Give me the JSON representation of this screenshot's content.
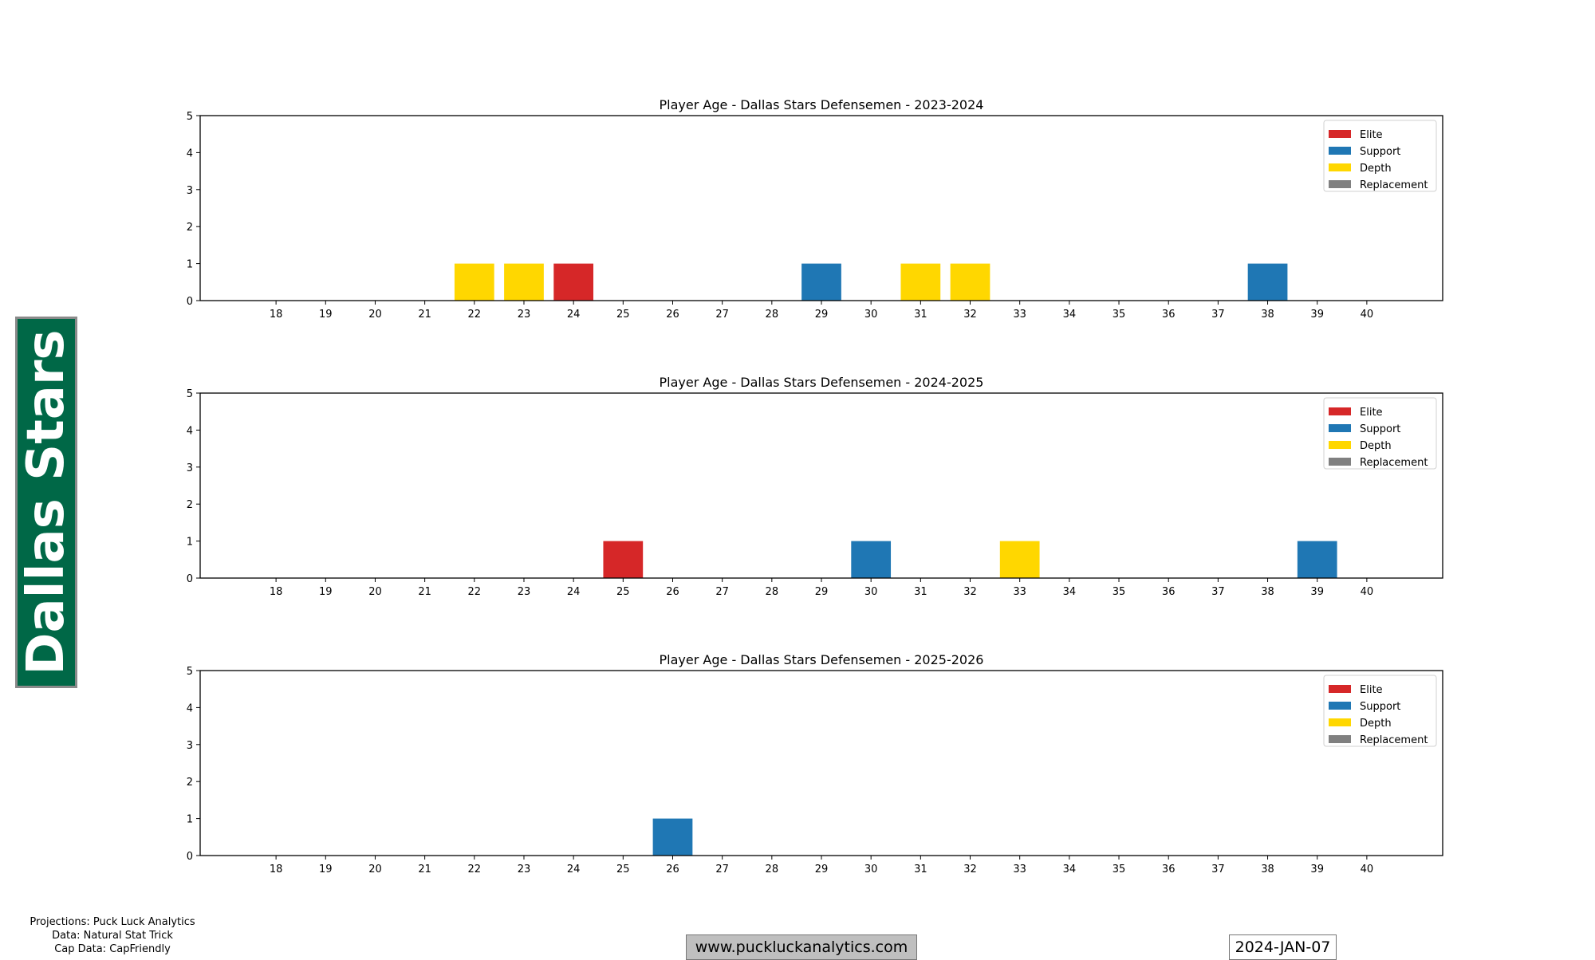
{
  "team_label": "Dallas Stars",
  "credits": [
    "Projections: Puck Luck Analytics",
    "Data: Natural Stat Trick",
    "Cap Data: CapFriendly"
  ],
  "website": "www.puckluckanalytics.com",
  "date": "2024-JAN-07",
  "colors": {
    "Elite": "#d62728",
    "Support": "#1f77b4",
    "Depth": "#ffd700",
    "Replacement": "#808080",
    "team": "#006847"
  },
  "chart_data": [
    {
      "type": "bar",
      "title": "Player Age - Dallas Stars Defensemen - 2023-2024",
      "categories": [
        18,
        19,
        20,
        21,
        22,
        23,
        24,
        25,
        26,
        27,
        28,
        29,
        30,
        31,
        32,
        33,
        34,
        35,
        36,
        37,
        38,
        39,
        40
      ],
      "ylim": [
        0,
        5
      ],
      "yticks": [
        0,
        1,
        2,
        3,
        4,
        5
      ],
      "legend": [
        "Elite",
        "Support",
        "Depth",
        "Replacement"
      ],
      "legend_position": "top-right",
      "bars": [
        {
          "age": 22,
          "value": 1,
          "tier": "Depth"
        },
        {
          "age": 23,
          "value": 1,
          "tier": "Depth"
        },
        {
          "age": 24,
          "value": 1,
          "tier": "Elite"
        },
        {
          "age": 29,
          "value": 1,
          "tier": "Support"
        },
        {
          "age": 31,
          "value": 1,
          "tier": "Depth"
        },
        {
          "age": 32,
          "value": 1,
          "tier": "Depth"
        },
        {
          "age": 38,
          "value": 1,
          "tier": "Support"
        }
      ]
    },
    {
      "type": "bar",
      "title": "Player Age - Dallas Stars Defensemen - 2024-2025",
      "categories": [
        18,
        19,
        20,
        21,
        22,
        23,
        24,
        25,
        26,
        27,
        28,
        29,
        30,
        31,
        32,
        33,
        34,
        35,
        36,
        37,
        38,
        39,
        40
      ],
      "ylim": [
        0,
        5
      ],
      "yticks": [
        0,
        1,
        2,
        3,
        4,
        5
      ],
      "legend": [
        "Elite",
        "Support",
        "Depth",
        "Replacement"
      ],
      "legend_position": "top-right",
      "bars": [
        {
          "age": 25,
          "value": 1,
          "tier": "Elite"
        },
        {
          "age": 30,
          "value": 1,
          "tier": "Support"
        },
        {
          "age": 33,
          "value": 1,
          "tier": "Depth"
        },
        {
          "age": 39,
          "value": 1,
          "tier": "Support"
        }
      ]
    },
    {
      "type": "bar",
      "title": "Player Age - Dallas Stars Defensemen - 2025-2026",
      "categories": [
        18,
        19,
        20,
        21,
        22,
        23,
        24,
        25,
        26,
        27,
        28,
        29,
        30,
        31,
        32,
        33,
        34,
        35,
        36,
        37,
        38,
        39,
        40
      ],
      "ylim": [
        0,
        5
      ],
      "yticks": [
        0,
        1,
        2,
        3,
        4,
        5
      ],
      "legend": [
        "Elite",
        "Support",
        "Depth",
        "Replacement"
      ],
      "legend_position": "top-right",
      "bars": [
        {
          "age": 26,
          "value": 1,
          "tier": "Support"
        }
      ]
    }
  ]
}
